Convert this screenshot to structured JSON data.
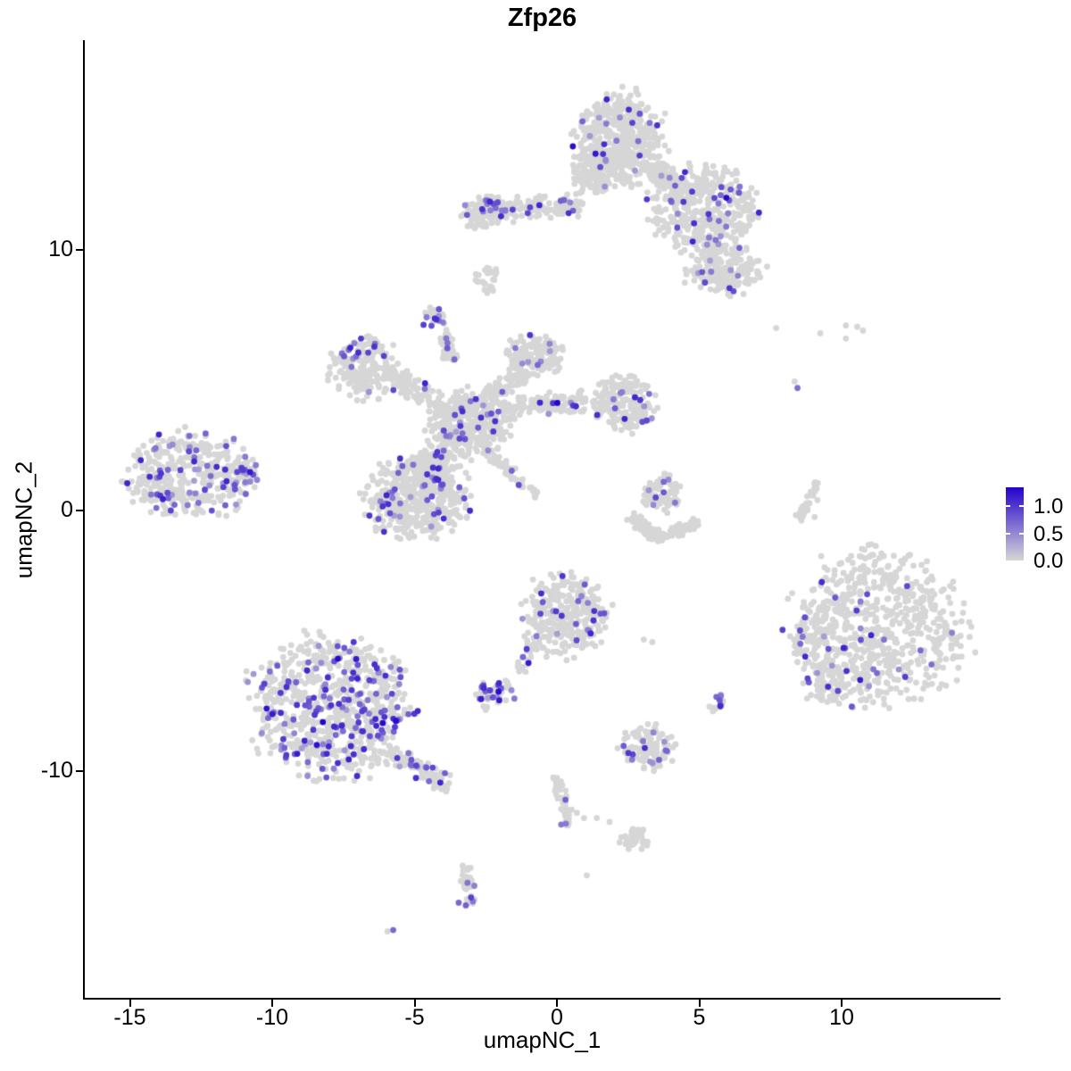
{
  "title": "Zfp26",
  "axes": {
    "x": {
      "label": "umapNC_1",
      "ticks": [
        -15,
        -10,
        -5,
        0,
        5,
        10
      ]
    },
    "y": {
      "label": "umapNC_2",
      "ticks": [
        10,
        0,
        -10
      ]
    }
  },
  "legend": {
    "tick_labels": [
      "1.0",
      "0.5",
      "0.0"
    ],
    "tick_values": [
      1.0,
      0.5,
      0.0
    ],
    "color_high": "#2302CC",
    "color_low": "#D6D6D6",
    "vmax": 1.35
  },
  "colors": {
    "background": "#FFFFFF",
    "axis": "#000000",
    "point_gray": "#D6D6D6",
    "point_high": "#2302CC"
  },
  "chart_data": {
    "type": "scatter",
    "title": "Zfp26",
    "xlabel": "umapNC_1",
    "ylabel": "umapNC_2",
    "xlim": [
      -16.6,
      15.5
    ],
    "ylim": [
      -18.7,
      18.0
    ],
    "grid": false,
    "legend_position": "right",
    "point_radius_px": 3.4,
    "seed": 421,
    "clusters": [
      {
        "name": "top-main",
        "shape": "blob",
        "cx": 2.25,
        "cy": 14.3,
        "rx": 1.45,
        "ry": 1.7,
        "n": 480,
        "frac": 0.035
      },
      {
        "name": "top-main-left",
        "shape": "blob",
        "cx": 1.3,
        "cy": 13.1,
        "rx": 0.8,
        "ry": 0.9,
        "n": 130,
        "frac": 0.03
      },
      {
        "name": "top-right-lobe",
        "shape": "blob",
        "cx": 5.2,
        "cy": 11.55,
        "rx": 1.75,
        "ry": 1.5,
        "n": 430,
        "frac": 0.055
      },
      {
        "name": "top-neck",
        "shape": "segment",
        "x1": 3.3,
        "y1": 13.2,
        "x2": 4.4,
        "y2": 12.3,
        "th": 0.5,
        "n": 90,
        "frac": 0.04
      },
      {
        "name": "top-bottom-ext",
        "shape": "blob",
        "cx": 5.85,
        "cy": 9.3,
        "rx": 1.25,
        "ry": 0.95,
        "n": 190,
        "frac": 0.05
      },
      {
        "name": "top-left-arm",
        "shape": "segment",
        "x1": -2.6,
        "y1": 11.5,
        "x2": 1.0,
        "y2": 11.8,
        "th": 0.5,
        "n": 150,
        "frac": 0.13
      },
      {
        "name": "top-left-arm-blob",
        "shape": "blob",
        "cx": -2.55,
        "cy": 11.45,
        "rx": 0.75,
        "ry": 0.65,
        "n": 100,
        "frac": 0.12
      },
      {
        "name": "top-small-below",
        "shape": "blob",
        "cx": -2.45,
        "cy": 8.9,
        "rx": 0.42,
        "ry": 0.5,
        "n": 26,
        "frac": 0.04
      },
      {
        "name": "mid-topleft-blob",
        "shape": "blob",
        "cx": -6.7,
        "cy": 5.5,
        "rx": 1.2,
        "ry": 1.1,
        "n": 210,
        "frac": 0.07
      },
      {
        "name": "mid-arm-nw",
        "shape": "segment",
        "x1": -5.6,
        "y1": 5.0,
        "x2": -3.7,
        "y2": 3.8,
        "th": 0.5,
        "n": 90,
        "frac": 0.05
      },
      {
        "name": "mid-arm-up",
        "shape": "segment",
        "x1": -3.95,
        "y1": 5.8,
        "x2": -3.8,
        "y2": 6.9,
        "th": 0.3,
        "n": 36,
        "frac": 0.06
      },
      {
        "name": "mid-center",
        "shape": "blob",
        "cx": -3.05,
        "cy": 3.3,
        "rx": 1.3,
        "ry": 1.2,
        "n": 360,
        "frac": 0.06
      },
      {
        "name": "mid-upper-lobe",
        "shape": "blob",
        "cx": -0.75,
        "cy": 5.95,
        "rx": 0.95,
        "ry": 0.8,
        "n": 140,
        "frac": 0.05
      },
      {
        "name": "mid-arm-ne",
        "shape": "segment",
        "x1": -2.4,
        "y1": 4.3,
        "x2": -1.2,
        "y2": 5.4,
        "th": 0.5,
        "n": 80,
        "frac": 0.05
      },
      {
        "name": "mid-arm-e",
        "shape": "segment",
        "x1": -2.0,
        "y1": 3.85,
        "x2": 1.0,
        "y2": 4.25,
        "th": 0.5,
        "n": 140,
        "frac": 0.05
      },
      {
        "name": "mid-right-blob",
        "shape": "blob",
        "cx": 2.4,
        "cy": 4.1,
        "rx": 1.05,
        "ry": 1.0,
        "n": 190,
        "frac": 0.06
      },
      {
        "name": "mid-lower-lobe",
        "shape": "blob",
        "cx": -4.9,
        "cy": 0.5,
        "rx": 1.75,
        "ry": 1.5,
        "n": 460,
        "frac": 0.08
      },
      {
        "name": "mid-neck-sw",
        "shape": "segment",
        "x1": -4.0,
        "y1": 2.4,
        "x2": -4.6,
        "y2": 1.3,
        "th": 0.7,
        "n": 110,
        "frac": 0.07
      },
      {
        "name": "mid-streak",
        "shape": "segment",
        "x1": -2.35,
        "y1": 2.2,
        "x2": -0.7,
        "y2": 0.55,
        "th": 0.22,
        "n": 55,
        "frac": 0.04
      },
      {
        "name": "far-left",
        "shape": "blob",
        "cx": -12.8,
        "cy": 1.4,
        "rx": 2.15,
        "ry": 1.5,
        "n": 400,
        "frac": 0.16
      },
      {
        "name": "far-left-tip",
        "shape": "segment",
        "x1": -11.3,
        "y1": 1.45,
        "x2": -10.6,
        "y2": 1.55,
        "th": 0.25,
        "n": 28,
        "frac": 0.3
      },
      {
        "name": "small-purple-blob",
        "shape": "blob",
        "cx": -4.3,
        "cy": 7.4,
        "rx": 0.42,
        "ry": 0.42,
        "n": 22,
        "frac": 0.45
      },
      {
        "name": "small-purple-trail",
        "shape": "segment",
        "x1": -3.95,
        "y1": 6.6,
        "x2": -3.6,
        "y2": 5.75,
        "th": 0.16,
        "n": 13,
        "frac": 0.15
      },
      {
        "name": "crescent-top",
        "shape": "blob",
        "cx": 3.7,
        "cy": 0.7,
        "rx": 0.7,
        "ry": 0.68,
        "n": 85,
        "frac": 0.04
      },
      {
        "name": "crescent-arc-left",
        "shape": "segment",
        "x1": 2.6,
        "y1": -0.2,
        "x2": 3.5,
        "y2": -1.05,
        "th": 0.3,
        "n": 60,
        "frac": 0
      },
      {
        "name": "crescent-arc-right",
        "shape": "segment",
        "x1": 3.5,
        "y1": -1.05,
        "x2": 5.05,
        "y2": -0.45,
        "th": 0.3,
        "n": 55,
        "frac": 0
      },
      {
        "name": "thin-arc",
        "shape": "segment",
        "x1": 8.45,
        "y1": -0.4,
        "x2": 9.15,
        "y2": 1.1,
        "th": 0.15,
        "n": 42,
        "frac": 0
      },
      {
        "name": "right-big",
        "shape": "blob",
        "cx": 11.3,
        "cy": -4.5,
        "rx": 2.85,
        "ry": 2.85,
        "n": 680,
        "frac": 0.032
      },
      {
        "name": "right-sub-left",
        "shape": "blob",
        "cx": 8.85,
        "cy": -4.95,
        "rx": 0.6,
        "ry": 0.75,
        "n": 45,
        "frac": 0.12
      },
      {
        "name": "right-sub-low",
        "shape": "blob",
        "cx": 9.4,
        "cy": -6.6,
        "rx": 0.7,
        "ry": 0.8,
        "n": 60,
        "frac": 0.05
      },
      {
        "name": "bottom-left-big",
        "shape": "blob",
        "cx": -7.9,
        "cy": -7.5,
        "rx": 2.65,
        "ry": 2.6,
        "n": 760,
        "frac": 0.2
      },
      {
        "name": "bottom-left-tail",
        "shape": "segment",
        "x1": -5.8,
        "y1": -9.3,
        "x2": -3.75,
        "y2": -10.6,
        "th": 0.45,
        "n": 90,
        "frac": 0.14
      },
      {
        "name": "center-bottom",
        "shape": "blob",
        "cx": 0.3,
        "cy": -3.95,
        "rx": 1.45,
        "ry": 1.5,
        "n": 290,
        "frac": 0.09
      },
      {
        "name": "center-bottom-tail",
        "shape": "segment",
        "x1": -0.7,
        "y1": -4.9,
        "x2": -1.35,
        "y2": -6.15,
        "th": 0.22,
        "n": 32,
        "frac": 0.06
      },
      {
        "name": "small-deep-purple",
        "shape": "blob",
        "cx": -2.1,
        "cy": -7.0,
        "rx": 0.72,
        "ry": 0.5,
        "n": 42,
        "frac": 0.3
      },
      {
        "name": "small-right-purple",
        "shape": "blob",
        "cx": 5.67,
        "cy": -7.3,
        "rx": 0.33,
        "ry": 0.45,
        "n": 12,
        "frac": 0.25
      },
      {
        "name": "bottom-small",
        "shape": "blob",
        "cx": 3.1,
        "cy": -9.1,
        "rx": 0.95,
        "ry": 0.82,
        "n": 105,
        "frac": 0.1
      },
      {
        "name": "trail-vertical",
        "shape": "segment",
        "x1": -0.05,
        "y1": -10.25,
        "x2": 0.45,
        "y2": -12.2,
        "th": 0.25,
        "n": 42,
        "frac": 0.05
      },
      {
        "name": "small-gray-blob",
        "shape": "blob",
        "cx": 2.75,
        "cy": -12.6,
        "rx": 0.55,
        "ry": 0.38,
        "n": 34,
        "frac": 0
      },
      {
        "name": "lower-left-trail",
        "shape": "segment",
        "x1": -3.25,
        "y1": -13.6,
        "x2": -3.05,
        "y2": -15.1,
        "th": 0.25,
        "n": 38,
        "frac": 0.1
      }
    ],
    "singles": [
      [
        7.7,
        7.0,
        0
      ],
      [
        9.25,
        6.8,
        0
      ],
      [
        10.15,
        7.1,
        0
      ],
      [
        10.55,
        7.05,
        0
      ],
      [
        10.15,
        6.6,
        0
      ],
      [
        10.75,
        6.9,
        0
      ],
      [
        8.35,
        4.95,
        0
      ],
      [
        8.45,
        4.7,
        0.65
      ],
      [
        3.05,
        -4.95,
        0
      ],
      [
        3.35,
        -5.05,
        0
      ],
      [
        -2.5,
        -7.65,
        0
      ],
      [
        0.7,
        -11.6,
        0
      ],
      [
        0.95,
        -11.8,
        0
      ],
      [
        1.4,
        -11.8,
        0
      ],
      [
        1.85,
        -11.95,
        0
      ],
      [
        1.05,
        -14.0,
        0
      ],
      [
        -5.95,
        -16.15,
        0
      ],
      [
        -5.75,
        -16.1,
        0.7
      ],
      [
        -11.35,
        2.75,
        0.6
      ],
      [
        -11.6,
        2.5,
        0
      ],
      [
        3.75,
        1.1,
        0.7
      ],
      [
        3.75,
        0.7,
        0.8
      ],
      [
        4.15,
        0.3,
        0.6
      ],
      [
        9.15,
        0.4,
        0
      ],
      [
        9.05,
        -0.25,
        0
      ],
      [
        -2.05,
        -6.95,
        1.3
      ],
      [
        -2.35,
        -6.9,
        0.95
      ],
      [
        5.95,
        12.0,
        1.3
      ],
      [
        5.75,
        12.1,
        0.7
      ],
      [
        6.05,
        11.9,
        0.8
      ],
      [
        5.67,
        11.78,
        0.6
      ],
      [
        5.1,
        9.15,
        0.8
      ],
      [
        5.2,
        8.75,
        0.9
      ],
      [
        10.65,
        -6.5,
        1.2
      ],
      [
        12.3,
        -2.9,
        0.9
      ],
      [
        3.0,
        3.4,
        0.85
      ],
      [
        3.15,
        3.45,
        0.9
      ],
      [
        -3.6,
        5.8,
        0.7
      ],
      [
        0.3,
        -11.1,
        0.75
      ],
      [
        0.15,
        -12.05,
        0.6
      ],
      [
        -3.45,
        -15.05,
        0.7
      ],
      [
        -3.2,
        -15.15,
        0.75
      ],
      [
        -2.95,
        -15.0,
        0.6
      ],
      [
        -2.9,
        -14.4,
        0.55
      ],
      [
        5.6,
        -7.15,
        0.7
      ],
      [
        5.72,
        -7.28,
        0.8
      ],
      [
        5.74,
        -7.45,
        0.75
      ]
    ]
  }
}
